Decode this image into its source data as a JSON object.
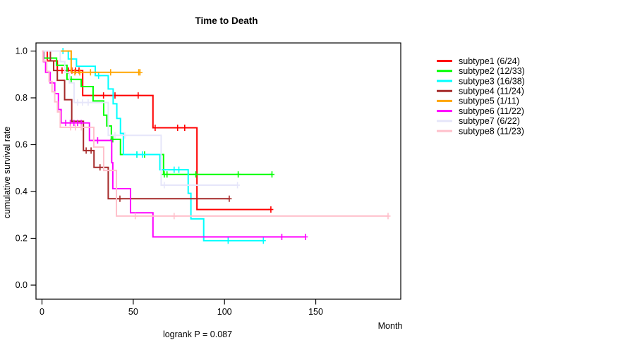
{
  "title": "Time to Death",
  "y_axis": {
    "label": "cumulative survival rate",
    "tick_labels": [
      "0.0",
      "0.2",
      "0.4",
      "0.6",
      "0.8",
      "1.0"
    ],
    "tick_values": [
      0.0,
      0.2,
      0.4,
      0.6,
      0.8,
      1.0
    ],
    "range": [
      0.0,
      1.0
    ]
  },
  "x_axis": {
    "label": "Month",
    "tick_labels": [
      "0",
      "50",
      "100",
      "150"
    ],
    "tick_values": [
      0,
      50,
      100,
      150
    ],
    "range": [
      0,
      196
    ]
  },
  "footer": {
    "logrank_text": "logrank P = 0.087"
  },
  "legend": {
    "items": [
      {
        "label": "subtype1 (6/24)",
        "color": "#FF0000"
      },
      {
        "label": "subtype2 (12/33)",
        "color": "#00FF00"
      },
      {
        "label": "subtype3 (16/38)",
        "color": "#00FFFF"
      },
      {
        "label": "subtype4 (11/24)",
        "color": "#A52A2A"
      },
      {
        "label": "subtype5 (1/11)",
        "color": "#FFA500"
      },
      {
        "label": "subtype6 (11/22)",
        "color": "#FF00FF"
      },
      {
        "label": "subtype7 (6/22)",
        "color": "#E6E6FA"
      },
      {
        "label": "subtype8 (11/23)",
        "color": "#FFC0CB"
      }
    ]
  },
  "chart_data": {
    "type": "line",
    "variant": "kaplan-meier-step",
    "title": "Time to Death",
    "xlabel": "Month",
    "ylabel": "cumulative survival rate",
    "xlim": [
      0,
      196
    ],
    "ylim": [
      0.0,
      1.0
    ],
    "grid": false,
    "legend_position": "right-outside",
    "series": [
      {
        "name": "subtype1",
        "events": "6/24",
        "color": "#FF0000",
        "steps": [
          [
            2.9,
            0.958
          ],
          [
            8.4,
            0.917
          ],
          [
            22.3,
            0.81
          ],
          [
            60.8,
            0.672
          ],
          [
            84.9,
            0.323
          ]
        ],
        "end_month": 125.4,
        "censor_marks": [
          [
            11,
            0.917
          ],
          [
            14.5,
            0.917
          ],
          [
            16.4,
            0.917
          ],
          [
            18.4,
            0.917
          ],
          [
            20.3,
            0.917
          ],
          [
            33.7,
            0.81
          ],
          [
            40,
            0.81
          ],
          [
            52.7,
            0.81
          ],
          [
            62,
            0.672
          ],
          [
            74.3,
            0.672
          ],
          [
            78.2,
            0.672
          ],
          [
            125.4,
            0.323
          ]
        ]
      },
      {
        "name": "subtype2",
        "events": "12/33",
        "color": "#00FF00",
        "steps": [
          [
            1,
            0.97
          ],
          [
            8,
            0.939
          ],
          [
            13.7,
            0.879
          ],
          [
            21.5,
            0.848
          ],
          [
            28,
            0.787
          ],
          [
            33.8,
            0.726
          ],
          [
            35.5,
            0.68
          ],
          [
            38,
            0.623
          ],
          [
            43,
            0.558
          ],
          [
            66.6,
            0.473
          ]
        ],
        "end_month": 126,
        "censor_marks": [
          [
            16,
            0.879
          ],
          [
            38.8,
            0.623
          ],
          [
            52,
            0.558
          ],
          [
            56.2,
            0.558
          ],
          [
            67,
            0.473
          ],
          [
            68.5,
            0.473
          ],
          [
            84.3,
            0.473
          ],
          [
            107.5,
            0.473
          ],
          [
            126,
            0.473
          ]
        ]
      },
      {
        "name": "subtype3",
        "events": "16/38",
        "color": "#00FFFF",
        "steps": [
          [
            14.4,
            0.966
          ],
          [
            18.9,
            0.935
          ],
          [
            29.2,
            0.895
          ],
          [
            36.3,
            0.838
          ],
          [
            39,
            0.775
          ],
          [
            41,
            0.712
          ],
          [
            43,
            0.648
          ],
          [
            44.6,
            0.558
          ],
          [
            64.6,
            0.493
          ],
          [
            80.1,
            0.392
          ],
          [
            81.6,
            0.283
          ],
          [
            88.6,
            0.19
          ]
        ],
        "end_month": 121.3,
        "censor_marks": [
          [
            11.5,
            1.0
          ],
          [
            31,
            0.895
          ],
          [
            52,
            0.558
          ],
          [
            55,
            0.558
          ],
          [
            72.4,
            0.493
          ],
          [
            75,
            0.493
          ],
          [
            102,
            0.19
          ],
          [
            121.3,
            0.19
          ]
        ]
      },
      {
        "name": "subtype4",
        "events": "11/24",
        "color": "#A52A2A",
        "steps": [
          [
            4.6,
            0.958
          ],
          [
            6.4,
            0.917
          ],
          [
            8.4,
            0.875
          ],
          [
            12.4,
            0.792
          ],
          [
            16.3,
            0.7
          ],
          [
            22.7,
            0.575
          ],
          [
            28.5,
            0.503
          ],
          [
            36.3,
            0.369
          ]
        ],
        "end_month": 102.6,
        "censor_marks": [
          [
            24.2,
            0.575
          ],
          [
            26.9,
            0.575
          ],
          [
            31.8,
            0.503
          ],
          [
            42.7,
            0.369
          ],
          [
            102.6,
            0.369
          ]
        ]
      },
      {
        "name": "subtype5",
        "events": "1/11",
        "color": "#FFA500",
        "steps": [
          [
            16,
            0.909
          ]
        ],
        "end_month": 53.7,
        "censor_marks": [
          [
            18,
            0.909
          ],
          [
            20.7,
            0.909
          ],
          [
            26.6,
            0.909
          ],
          [
            37.6,
            0.909
          ],
          [
            53,
            0.909
          ],
          [
            53.7,
            0.909
          ]
        ]
      },
      {
        "name": "subtype6",
        "events": "11/22",
        "color": "#FF00FF",
        "steps": [
          [
            0.8,
            0.955
          ],
          [
            2,
            0.909
          ],
          [
            4.5,
            0.864
          ],
          [
            7,
            0.818
          ],
          [
            9,
            0.75
          ],
          [
            10.5,
            0.693
          ],
          [
            26,
            0.618
          ],
          [
            38.2,
            0.523
          ],
          [
            38.8,
            0.412
          ],
          [
            48.5,
            0.309
          ],
          [
            60.8,
            0.206
          ]
        ],
        "end_month": 144.3,
        "censor_marks": [
          [
            13,
            0.693
          ],
          [
            15.5,
            0.693
          ],
          [
            17.5,
            0.693
          ],
          [
            19.5,
            0.693
          ],
          [
            21.5,
            0.693
          ],
          [
            30.5,
            0.618
          ],
          [
            131.4,
            0.206
          ],
          [
            144.3,
            0.206
          ]
        ]
      },
      {
        "name": "subtype7",
        "events": "6/22",
        "color": "#E6E6FA",
        "steps": [
          [
            10,
            0.955
          ],
          [
            12.5,
            0.909
          ],
          [
            15,
            0.864
          ],
          [
            17.6,
            0.78
          ],
          [
            36.3,
            0.64
          ],
          [
            65.3,
            0.427
          ]
        ],
        "end_month": 107.1,
        "censor_marks": [
          [
            19.5,
            0.78
          ],
          [
            22.2,
            0.78
          ],
          [
            25.3,
            0.78
          ],
          [
            40,
            0.64
          ],
          [
            45.4,
            0.64
          ],
          [
            67,
            0.427
          ],
          [
            107.1,
            0.427
          ]
        ]
      },
      {
        "name": "subtype8",
        "events": "11/23",
        "color": "#FFC0CB",
        "steps": [
          [
            0.5,
            0.957
          ],
          [
            2.6,
            0.913
          ],
          [
            3.9,
            0.87
          ],
          [
            5.5,
            0.826
          ],
          [
            7,
            0.783
          ],
          [
            8.5,
            0.74
          ],
          [
            10,
            0.674
          ],
          [
            28.4,
            0.59
          ],
          [
            33.8,
            0.49
          ],
          [
            40.8,
            0.295
          ]
        ],
        "end_month": 189.6,
        "censor_marks": [
          [
            15.7,
            0.674
          ],
          [
            18.3,
            0.674
          ],
          [
            21.5,
            0.674
          ],
          [
            51.1,
            0.295
          ],
          [
            72.4,
            0.295
          ],
          [
            189.6,
            0.295
          ]
        ]
      }
    ]
  }
}
